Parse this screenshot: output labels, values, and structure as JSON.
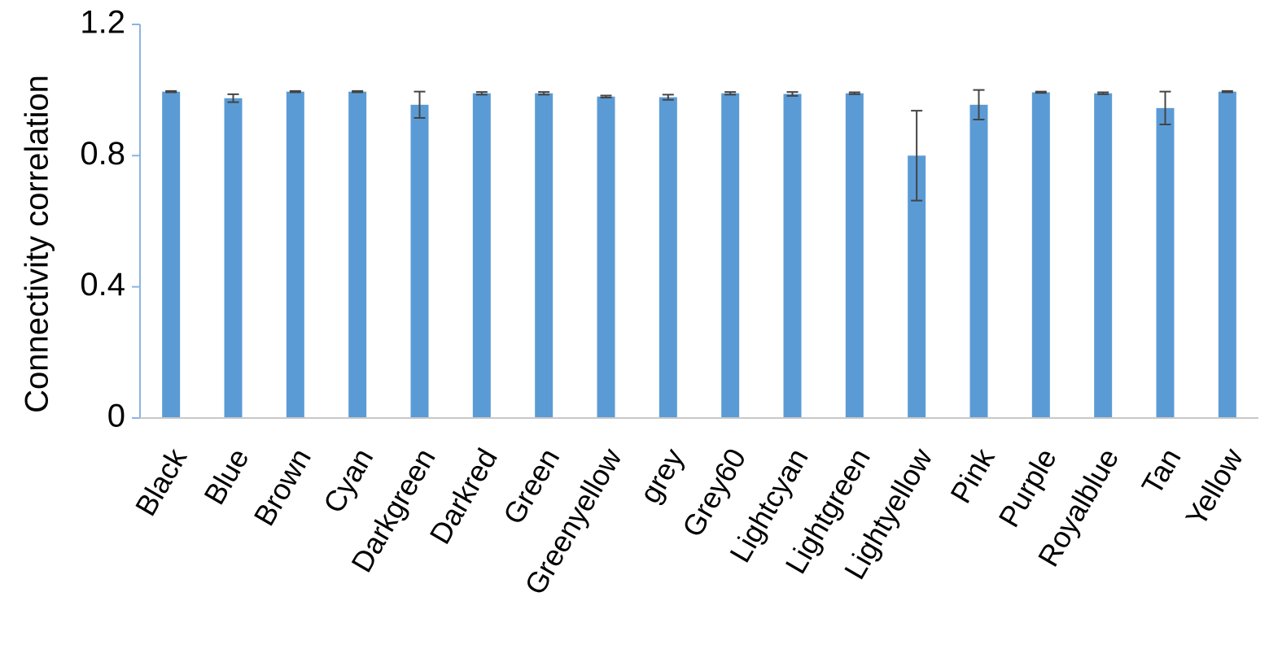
{
  "chart_data": {
    "type": "bar",
    "y_label": "Connectivity  correlation",
    "categories": [
      "Black",
      "Blue",
      "Brown",
      "Cyan",
      "Darkgreen",
      "Darkred",
      "Green",
      "Greenyellow",
      "grey",
      "Grey60",
      "Lightcyan",
      "Lightgreen",
      "Lightyellow",
      "Pink",
      "Purple",
      "Royalblue",
      "Tan",
      "Yellow"
    ],
    "values": [
      0.995,
      0.975,
      0.995,
      0.995,
      0.955,
      0.99,
      0.99,
      0.98,
      0.978,
      0.99,
      0.988,
      0.99,
      0.8,
      0.955,
      0.993,
      0.99,
      0.945,
      0.995
    ],
    "errors": [
      0.002,
      0.012,
      0.002,
      0.002,
      0.04,
      0.004,
      0.004,
      0.003,
      0.008,
      0.004,
      0.006,
      0.003,
      0.137,
      0.045,
      0.002,
      0.003,
      0.05,
      0.002
    ],
    "color": "#5b9bd5",
    "ylim": [
      0,
      1.2
    ],
    "yticks": [
      0,
      0.4,
      0.8,
      1.2
    ],
    "grid": false
  }
}
